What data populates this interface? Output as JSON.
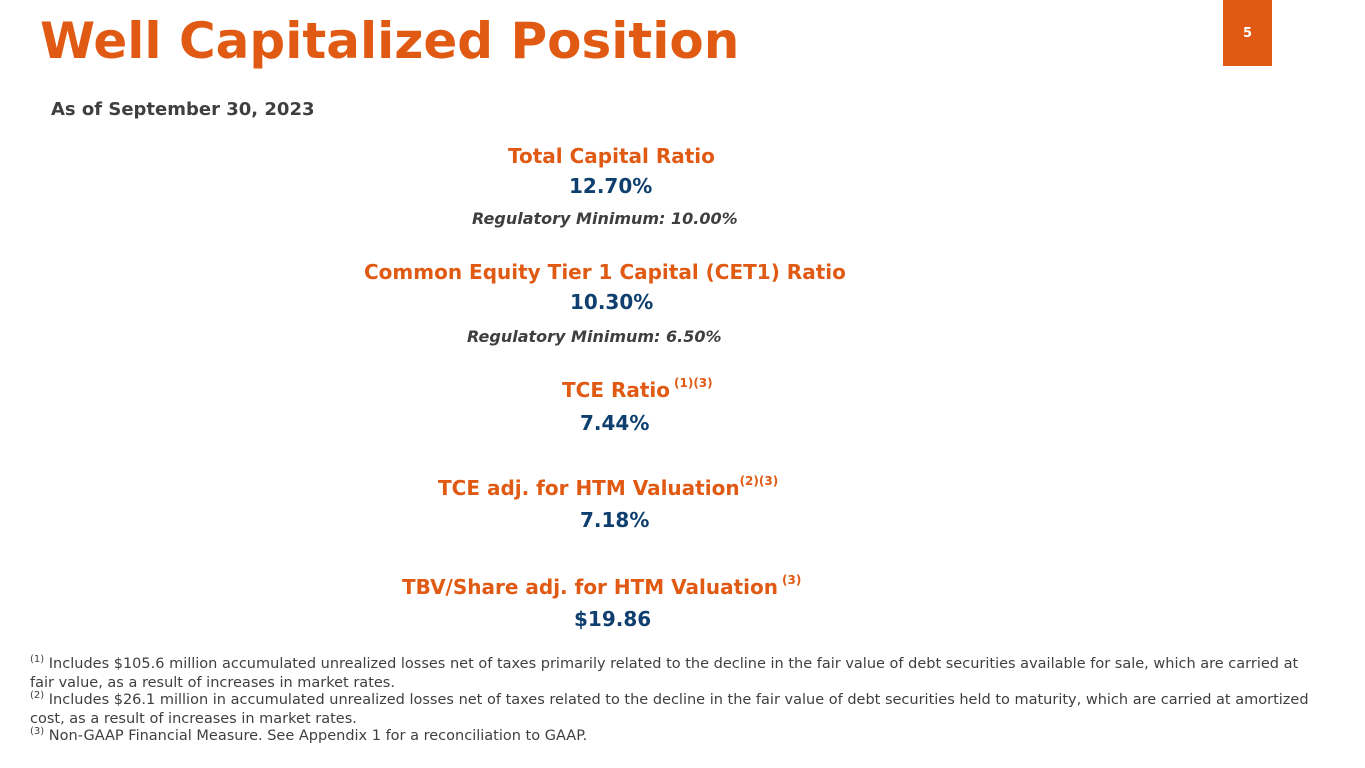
{
  "header": {
    "title": "Well Capitalized Position",
    "page_number": "5"
  },
  "as_of": "As of September 30, 2023",
  "metrics": {
    "total_capital": {
      "label": "Total Capital Ratio",
      "value": "12.70%",
      "regulatory_minimum": "Regulatory Minimum: 10.00%"
    },
    "cet1": {
      "label": "Common Equity Tier 1 Capital (CET1) Ratio",
      "value": "10.30%",
      "regulatory_minimum": "Regulatory Minimum: 6.50%"
    },
    "tce": {
      "label": "TCE Ratio",
      "superscript": "(1)(3)",
      "value": "7.44%"
    },
    "tce_htm": {
      "label": "TCE adj. for HTM Valuation",
      "superscript": "(2)(3)",
      "value": "7.18%"
    },
    "tbv_share": {
      "label": "TBV/Share adj. for HTM Valuation",
      "superscript": "(3)",
      "value": "$19.86"
    }
  },
  "footnotes": [
    {
      "marker": "(1)",
      "text": "Includes $105.6 million accumulated unrealized losses net of taxes primarily related to the decline in the fair value of debt securities available for sale, which are carried at fair value, as a result of increases in market rates."
    },
    {
      "marker": "(2)",
      "text": "Includes $26.1 million in accumulated unrealized losses net of taxes related to the decline in the fair value of debt securities held to maturity, which are carried at amortized cost, as a result of increases in market rates."
    },
    {
      "marker": "(3)",
      "text": "Non-GAAP Financial Measure. See Appendix 1 for a reconciliation to GAAP."
    }
  ],
  "colors": {
    "accent_orange": "#e05a13",
    "value_navy": "#0e3f6e",
    "text_gray": "#3f3f3f",
    "background": "#ffffff"
  }
}
